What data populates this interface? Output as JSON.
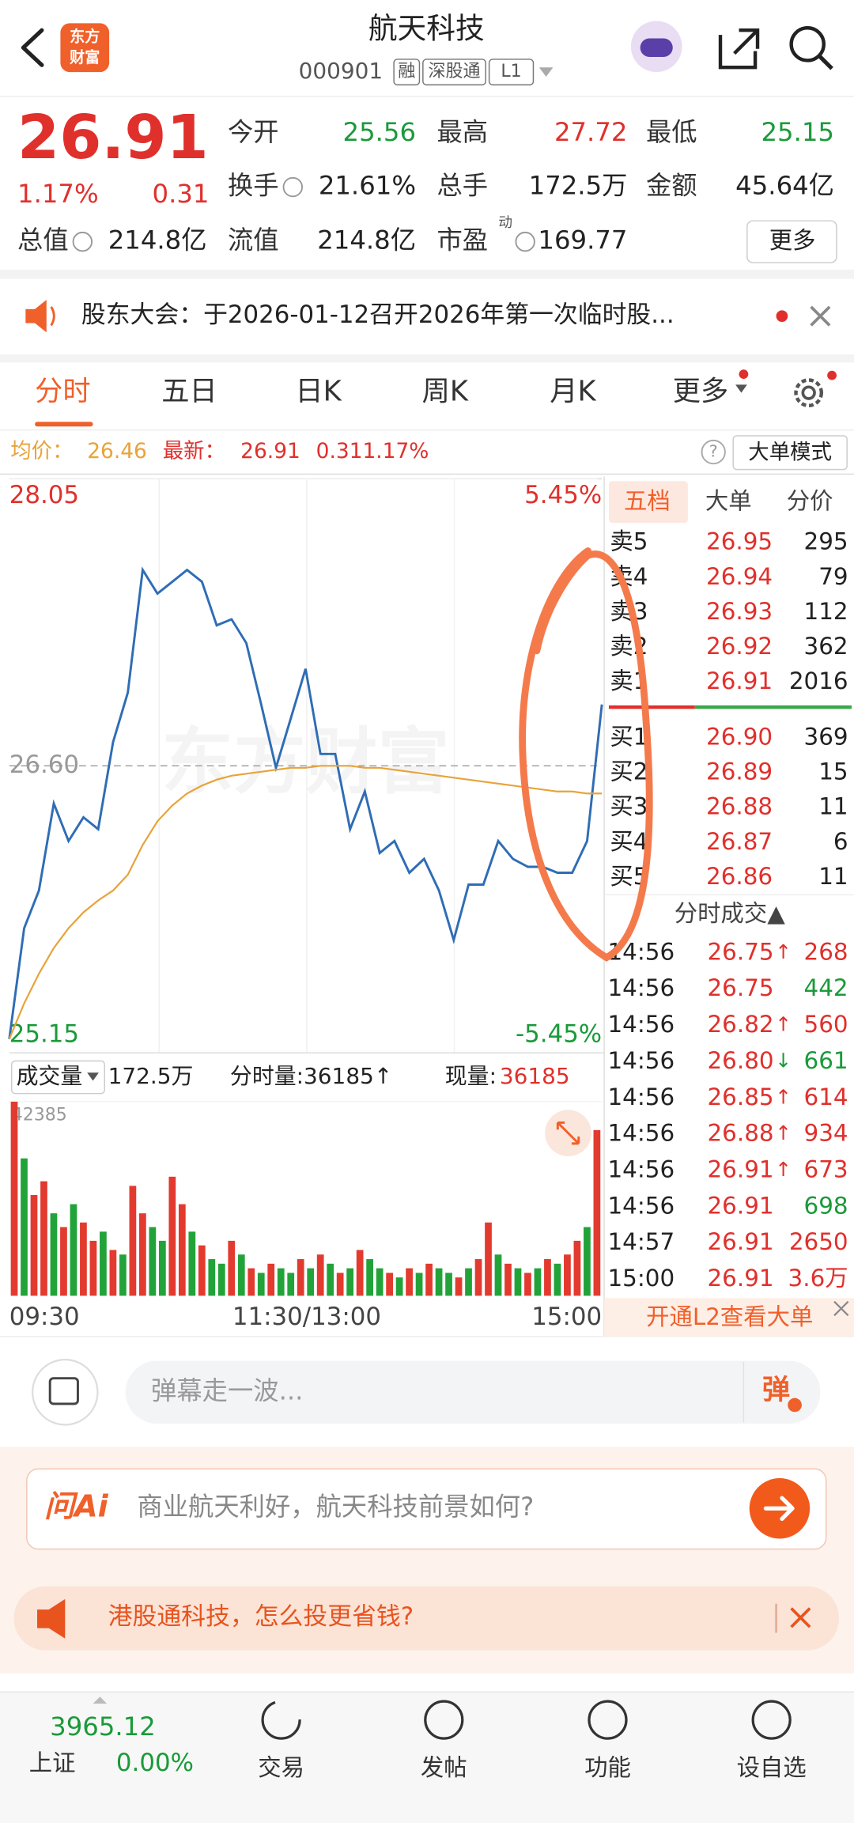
{
  "header": {
    "title": "航天科技",
    "code": "000901",
    "badges": [
      "融",
      "深股通",
      "L1"
    ],
    "logo": [
      "东方",
      "财富"
    ]
  },
  "quote": {
    "price": "26.91",
    "change_pct": "1.17%",
    "change": "0.31",
    "more": "更多",
    "fields": [
      {
        "label": "今开",
        "value": "25.56",
        "color": "#1a9a3a"
      },
      {
        "label": "最高",
        "value": "27.72",
        "color": "#e0302c"
      },
      {
        "label": "最低",
        "value": "25.15",
        "color": "#1a9a3a"
      },
      {
        "label": "换手",
        "value": "21.61%",
        "color": "#222222"
      },
      {
        "label": "总手",
        "value": "172.5万",
        "color": "#222222"
      },
      {
        "label": "金额",
        "value": "45.64亿",
        "color": "#222222"
      },
      {
        "label": "总值",
        "value": "214.8亿",
        "color": "#222222"
      },
      {
        "label": "流值",
        "value": "214.8亿",
        "color": "#222222"
      },
      {
        "label": "市盈",
        "sup": "动",
        "value": "169.77",
        "color": "#222222"
      }
    ]
  },
  "notice": "股东大会：于2026-01-12召开2026年第一次临时股...",
  "tabs": [
    "分时",
    "五日",
    "日K",
    "周K",
    "月K",
    "更多"
  ],
  "info": {
    "avg_label": "均价：",
    "avg": "26.46",
    "last_label": "最新：",
    "last": "26.91",
    "change": "0.31",
    "change_pct": "1.17%",
    "help": "?",
    "mode": "大单模式"
  },
  "chart_data": [
    {
      "type": "line",
      "watermark": "东方财富",
      "ylim": [
        25.15,
        28.05
      ],
      "yticks": [
        28.05,
        {
          "value": 26.6,
          "label": "26.60"
        },
        25.15
      ],
      "y2lim": [
        -5.45,
        5.45
      ],
      "y2ticks": [
        {
          "value": 5.45,
          "label": "5.45%"
        },
        {
          "value": -5.45,
          "label": "-5.45%"
        }
      ],
      "series": [
        {
          "color": "#2f6db5",
          "values": [
            25.22,
            25.78,
            25.97,
            26.41,
            26.22,
            26.34,
            26.28,
            26.72,
            26.97,
            27.59,
            27.47,
            27.53,
            27.59,
            27.53,
            27.31,
            27.34,
            27.22,
            26.91,
            26.59,
            26.84,
            27.09,
            26.66,
            26.66,
            26.28,
            26.47,
            26.16,
            26.22,
            26.06,
            26.13,
            25.97,
            25.72,
            26.0,
            26.0,
            26.22,
            26.13,
            26.09,
            26.09,
            26.06,
            26.06,
            26.22,
            26.91
          ]
        },
        {
          "color": "#e8a33a",
          "values": [
            25.22,
            25.4,
            25.55,
            25.68,
            25.78,
            25.86,
            25.92,
            25.97,
            26.05,
            26.2,
            26.32,
            26.4,
            26.46,
            26.5,
            26.53,
            26.55,
            26.56,
            26.57,
            26.58,
            26.59,
            26.59,
            26.6,
            26.6,
            26.6,
            26.59,
            26.59,
            26.58,
            26.57,
            26.56,
            26.55,
            26.54,
            26.53,
            26.52,
            26.51,
            26.5,
            26.49,
            26.48,
            26.47,
            26.47,
            26.46,
            26.46
          ]
        }
      ]
    },
    {
      "type": "bar",
      "ylim": [
        0,
        42385
      ],
      "yticks": [
        42385
      ],
      "x_labels": [
        "09:30",
        "11:30/13:00",
        "15:00"
      ],
      "values": [
        42385,
        30000,
        22000,
        25000,
        18000,
        15000,
        20000,
        16000,
        12000,
        14000,
        10000,
        9000,
        24000,
        18000,
        15000,
        12000,
        26000,
        20000,
        14000,
        11000,
        8000,
        7000,
        12000,
        9000,
        6000,
        5000,
        7000,
        6000,
        5000,
        8000,
        6000,
        9000,
        7000,
        5000,
        6000,
        10000,
        8000,
        6000,
        5000,
        4000,
        6000,
        5000,
        7000,
        6000,
        5000,
        4000,
        6000,
        8000,
        16000,
        9000,
        7000,
        6000,
        5000,
        6000,
        8000,
        7000,
        9000,
        12000,
        15000,
        36185
      ],
      "colors": [
        "#e33a2f",
        "#22a33a",
        "#e33a2f",
        "#e33a2f",
        "#22a33a",
        "#e33a2f",
        "#22a33a",
        "#e33a2f",
        "#e33a2f",
        "#22a33a",
        "#e33a2f",
        "#22a33a",
        "#e33a2f",
        "#e33a2f",
        "#22a33a",
        "#22a33a",
        "#e33a2f",
        "#e33a2f",
        "#22a33a",
        "#e33a2f",
        "#22a33a",
        "#22a33a",
        "#e33a2f",
        "#22a33a",
        "#e33a2f",
        "#22a33a",
        "#e33a2f",
        "#22a33a",
        "#22a33a",
        "#e33a2f",
        "#22a33a",
        "#e33a2f",
        "#22a33a",
        "#e33a2f",
        "#22a33a",
        "#e33a2f",
        "#22a33a",
        "#22a33a",
        "#e33a2f",
        "#22a33a",
        "#e33a2f",
        "#22a33a",
        "#e33a2f",
        "#22a33a",
        "#22a33a",
        "#e33a2f",
        "#22a33a",
        "#e33a2f",
        "#e33a2f",
        "#22a33a",
        "#e33a2f",
        "#22a33a",
        "#e33a2f",
        "#22a33a",
        "#e33a2f",
        "#22a33a",
        "#e33a2f",
        "#e33a2f",
        "#22a33a",
        "#e33a2f"
      ]
    }
  ],
  "volume_header": {
    "label": "成交量",
    "total": "172.5万",
    "tick": "分时量:36185↑",
    "now_label": "现量:",
    "now": "36185"
  },
  "order_book": {
    "tabs": [
      "五档",
      "大单",
      "分价"
    ],
    "asks": [
      {
        "label": "卖5",
        "price": "26.95",
        "vol": "295"
      },
      {
        "label": "卖4",
        "price": "26.94",
        "vol": "79"
      },
      {
        "label": "卖3",
        "price": "26.93",
        "vol": "112"
      },
      {
        "label": "卖2",
        "price": "26.92",
        "vol": "362"
      },
      {
        "label": "卖1",
        "price": "26.91",
        "vol": "2016"
      }
    ],
    "bids": [
      {
        "label": "买1",
        "price": "26.90",
        "vol": "369"
      },
      {
        "label": "买2",
        "price": "26.89",
        "vol": "15"
      },
      {
        "label": "买3",
        "price": "26.88",
        "vol": "11"
      },
      {
        "label": "买4",
        "price": "26.87",
        "vol": "6"
      },
      {
        "label": "买5",
        "price": "26.86",
        "vol": "11"
      }
    ]
  },
  "trades": {
    "title": "分时成交▲",
    "rows": [
      {
        "time": "14:56",
        "price": "26.75",
        "arrow": "↑",
        "vol": "268",
        "color": "#e0302c"
      },
      {
        "time": "14:56",
        "price": "26.75",
        "vol": "442",
        "color": "#1a9a3a"
      },
      {
        "time": "14:56",
        "price": "26.82",
        "arrow": "↑",
        "vol": "560",
        "color": "#e0302c"
      },
      {
        "time": "14:56",
        "price": "26.80",
        "arrow": "↓",
        "vol": "661",
        "color": "#1a9a3a"
      },
      {
        "time": "14:56",
        "price": "26.85",
        "arrow": "↑",
        "vol": "614",
        "color": "#e0302c"
      },
      {
        "time": "14:56",
        "price": "26.88",
        "arrow": "↑",
        "vol": "934",
        "color": "#e0302c"
      },
      {
        "time": "14:56",
        "price": "26.91",
        "arrow": "↑",
        "vol": "673",
        "color": "#e0302c"
      },
      {
        "time": "14:56",
        "price": "26.91",
        "vol": "698",
        "color": "#1a9a3a"
      },
      {
        "time": "14:57",
        "price": "26.91",
        "vol": "2650",
        "color": "#e0302c"
      },
      {
        "time": "15:00",
        "price": "26.91",
        "vol": "3.6万",
        "color": "#e0302c"
      }
    ]
  },
  "l2_banner": "开通L2查看大单",
  "comment": {
    "placeholder": "弹幕走一波...",
    "button": "弹"
  },
  "ai": {
    "logo": "问Ai",
    "prompt": "商业航天利好，航天科技前景如何?"
  },
  "banner": "港股通科技，怎么投更省钱?",
  "bottom_nav": {
    "index_value": "3965.12",
    "index_name": "上证",
    "index_change": "0.00%",
    "items": [
      "交易",
      "发帖",
      "功能",
      "设自选"
    ]
  }
}
